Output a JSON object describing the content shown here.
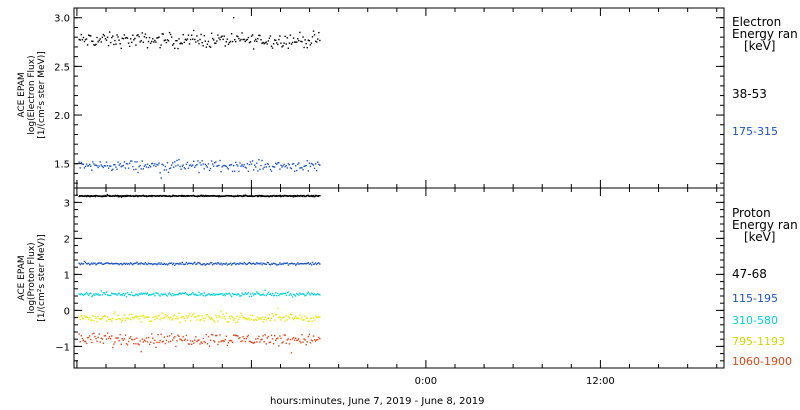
{
  "xaxis": {
    "label": "hours:minutes, June  7, 2019 - June  8, 2019",
    "ticks": [
      {
        "hour": 0,
        "label": ""
      },
      {
        "hour": 24,
        "label": "0:00"
      },
      {
        "hour": 36,
        "label": "12:00"
      },
      {
        "hour": 48,
        "label": ""
      }
    ],
    "range": [
      -0.2,
      44.5
    ],
    "data_end_hour": 16.7
  },
  "panels": [
    {
      "id": "electron",
      "ylabel": [
        "ACE EPAM",
        "log(Electron Flux)",
        "[1/(cm²s ster MeV)]"
      ],
      "ylim": [
        1.25,
        3.1
      ],
      "yticks": [
        1.5,
        2.0,
        2.5,
        3.0
      ],
      "ytick_labels": [
        "1.5",
        "2.0",
        "2.5",
        "3.0"
      ],
      "minor_step": 0.1,
      "legend_title": [
        "Electron",
        "Energy ran",
        "[keV]"
      ],
      "series": [
        {
          "name": "38-53",
          "color": "#000000",
          "mean": 2.77,
          "spread": 0.07
        },
        {
          "name": "175-315",
          "color": "#1c53c8",
          "mean": 1.48,
          "spread": 0.05
        }
      ]
    },
    {
      "id": "proton",
      "ylabel": [
        "ACE EPAM",
        "log(Proton Flux)",
        "[1/(cm²s ster MeV)]"
      ],
      "ylim": [
        -1.6,
        3.4
      ],
      "yticks": [
        -1,
        0,
        1,
        2,
        3
      ],
      "ytick_labels": [
        "−1",
        "0",
        "1",
        "2",
        "3"
      ],
      "minor_step": 0.2,
      "legend_title": [
        "Proton",
        "Energy ran",
        "[keV]"
      ],
      "series": [
        {
          "name": "47-68",
          "color": "#000000",
          "mean": 3.18,
          "spread": 0.015
        },
        {
          "name": "115-195",
          "color": "#1c53c8",
          "mean": 1.3,
          "spread": 0.03
        },
        {
          "name": "310-580",
          "color": "#00d0d8",
          "mean": 0.45,
          "spread": 0.05
        },
        {
          "name": "795-1193",
          "color": "#e8e800",
          "mean": -0.2,
          "spread": 0.1
        },
        {
          "name": "1060-1900",
          "color": "#e0451a",
          "mean": -0.8,
          "spread": 0.15
        }
      ]
    }
  ],
  "chart_data": {
    "type": "scatter",
    "title": "",
    "xlabel": "hours:minutes, June  7, 2019 - June  8, 2019",
    "panels": [
      {
        "ylabel": "ACE EPAM log(Electron Flux) [1/(cm²s ster MeV)]",
        "ylim": [
          1.25,
          3.1
        ],
        "series": [
          {
            "name": "38-53",
            "approx_log_flux": 2.77
          },
          {
            "name": "175-315",
            "approx_log_flux": 1.48
          }
        ]
      },
      {
        "ylabel": "ACE EPAM log(Proton Flux) [1/(cm²s ster MeV)]",
        "ylim": [
          -1.6,
          3.4
        ],
        "series": [
          {
            "name": "47-68",
            "approx_log_flux": 3.18
          },
          {
            "name": "115-195",
            "approx_log_flux": 1.3
          },
          {
            "name": "310-580",
            "approx_log_flux": 0.45
          },
          {
            "name": "795-1193",
            "approx_log_flux": -0.2
          },
          {
            "name": "1060-1900",
            "approx_log_flux": -0.8
          }
        ]
      }
    ]
  }
}
